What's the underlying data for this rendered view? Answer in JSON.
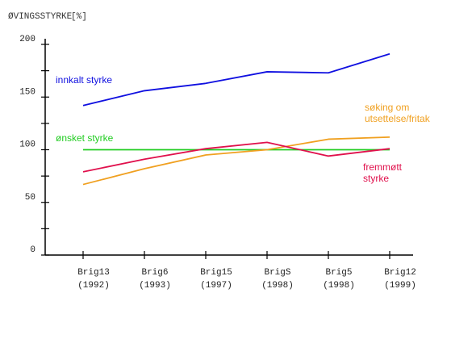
{
  "chart_data": {
    "type": "line",
    "title": "",
    "ylabel": "ØVINGSSTYRKE",
    "ylabel_suffix": "[%]",
    "xlabel": "",
    "ylim": [
      0,
      200
    ],
    "yticks": [
      0,
      50,
      100,
      150,
      200
    ],
    "grid": false,
    "categories": [
      {
        "name": "Brig13",
        "year": "(1992)"
      },
      {
        "name": "Brig6",
        "year": "(1993)"
      },
      {
        "name": "Brig15",
        "year": "(1997)"
      },
      {
        "name": "BrigS",
        "year": "(1998)"
      },
      {
        "name": "Brig5",
        "year": "(1998)"
      },
      {
        "name": "Brig12",
        "year": "(1999)"
      }
    ],
    "series": [
      {
        "name": "innkalt styrke",
        "color": "#1010e0",
        "values": [
          142,
          156,
          163,
          174,
          173,
          191
        ]
      },
      {
        "name": "ønsket styrke",
        "color": "#22cc22",
        "values": [
          100,
          100,
          100,
          100,
          100,
          100
        ]
      },
      {
        "name": "søking om utsettelse/fritak",
        "color": "#f0a020",
        "values": [
          67,
          82,
          95,
          100,
          110,
          112
        ]
      },
      {
        "name": "fremmøtt styrke",
        "color": "#e0104c",
        "values": [
          79,
          91,
          101,
          107,
          94,
          101
        ]
      }
    ],
    "annotations": [
      {
        "series": 0,
        "lines": [
          "innkalt styrke"
        ]
      },
      {
        "series": 1,
        "lines": [
          "ønsket styrke"
        ]
      },
      {
        "series": 2,
        "lines": [
          "søking om",
          "utsettelse/fritak"
        ]
      },
      {
        "series": 3,
        "lines": [
          "fremmøtt",
          "styrke"
        ]
      }
    ]
  }
}
